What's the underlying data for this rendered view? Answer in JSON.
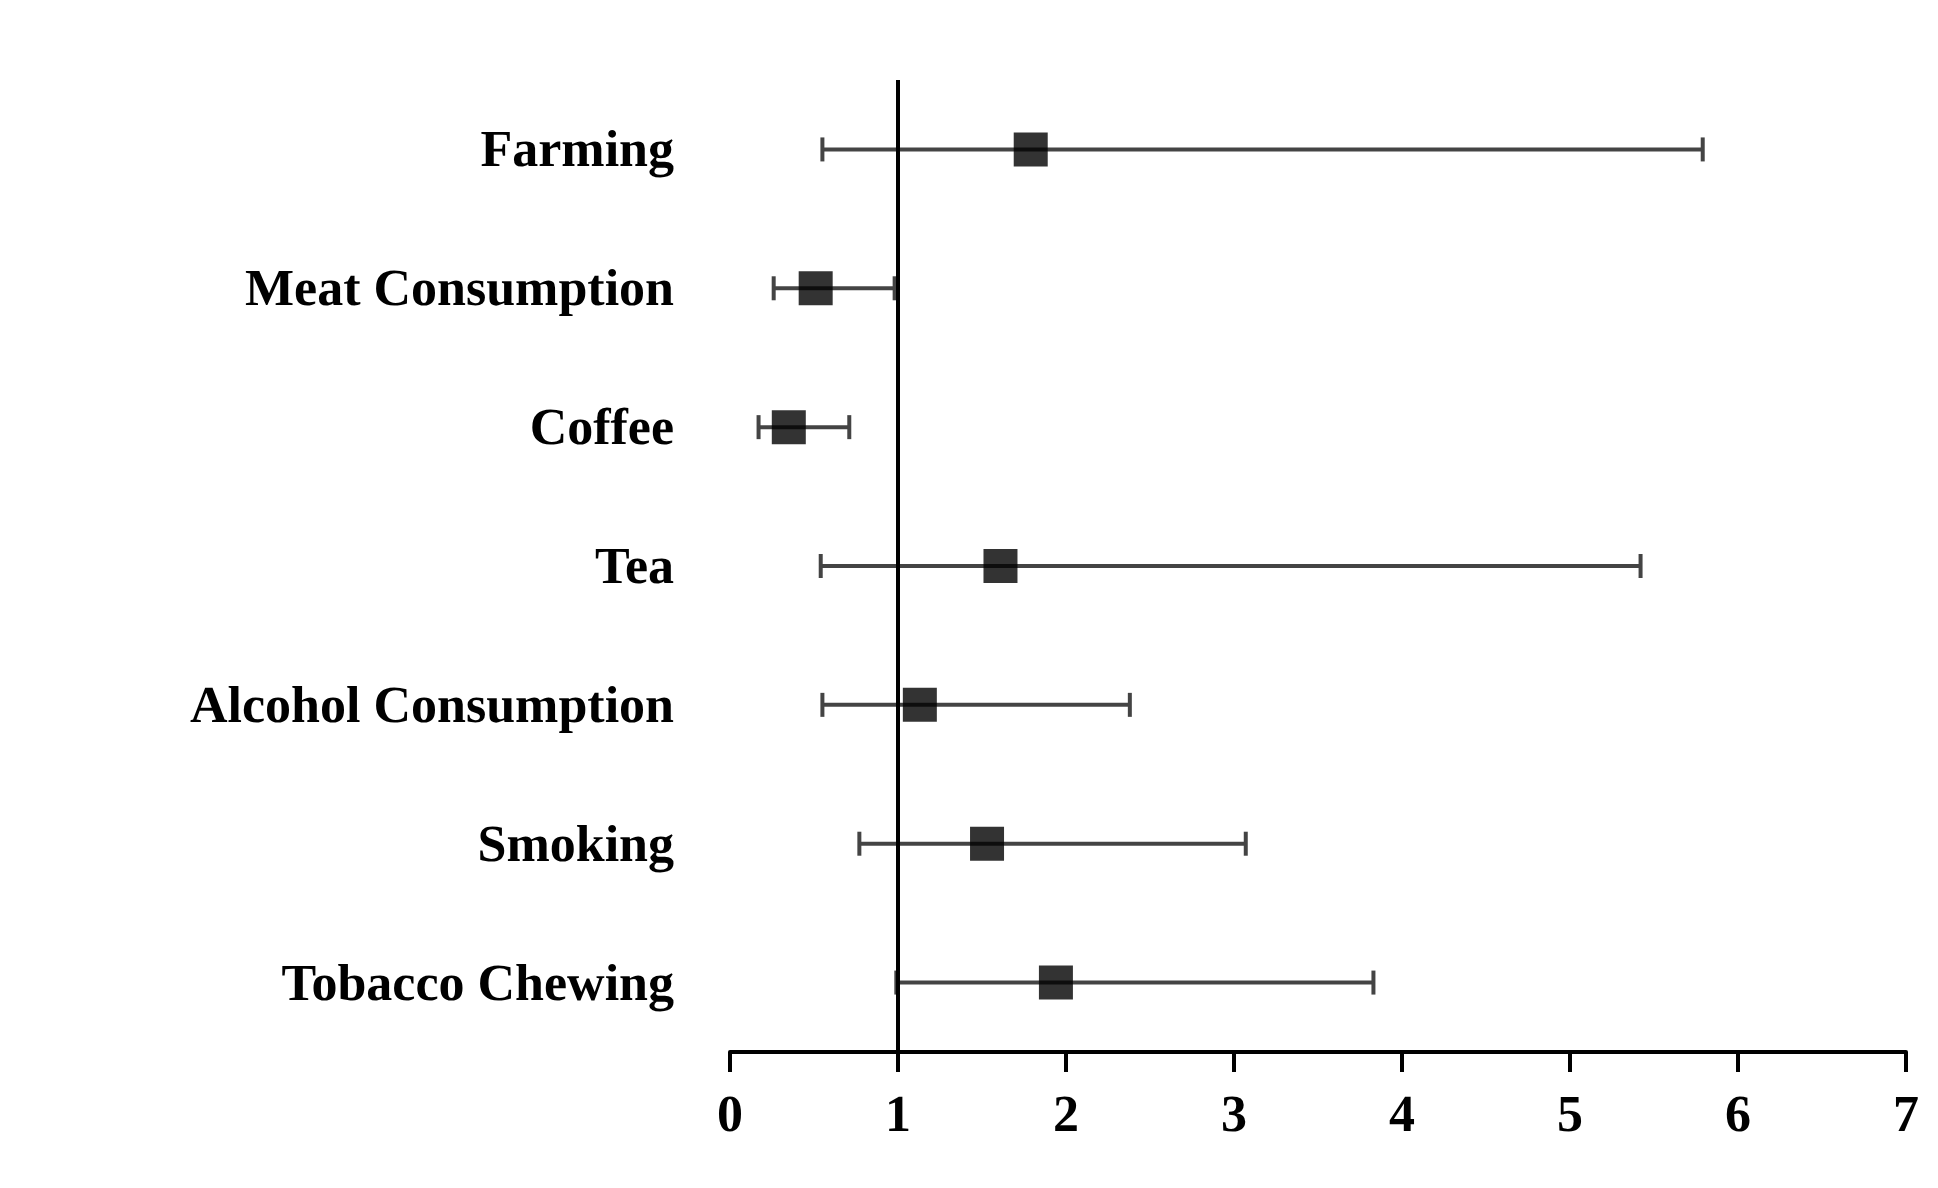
{
  "chart_data": {
    "type": "scatter",
    "orientation": "horizontal",
    "marker": "square",
    "categories": [
      "Farming",
      "Meat Consumption",
      "Coffee",
      "Tea",
      "Alcohol Consumption",
      "Smoking",
      "Tobacco Chewing"
    ],
    "series": [
      {
        "color": "#000000",
        "values": [
          1.79,
          0.51,
          0.35,
          1.61,
          1.13,
          1.53,
          1.94
        ],
        "errors": [
          [
            0.55,
            5.79
          ],
          [
            0.26,
            0.98
          ],
          [
            0.17,
            0.71
          ],
          [
            0.54,
            5.42
          ],
          [
            0.55,
            2.38
          ],
          [
            0.77,
            3.07
          ],
          [
            0.99,
            3.83
          ]
        ]
      }
    ],
    "xlim": [
      0,
      7
    ],
    "xticks": [
      0,
      1,
      2,
      3,
      4,
      5,
      6,
      7
    ],
    "ref_lines": [
      {
        "axis": "x",
        "value": 1,
        "color": "#000000",
        "line_style": "solid"
      }
    ],
    "grid": false
  }
}
